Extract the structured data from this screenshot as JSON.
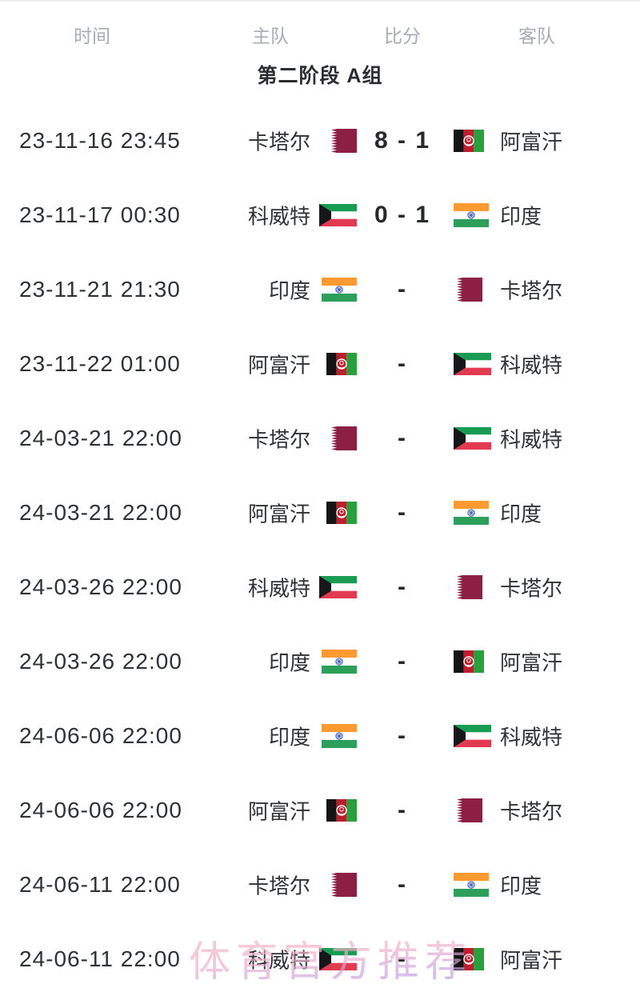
{
  "header": {
    "columns": [
      "时间",
      "主队",
      "比分",
      "客队"
    ]
  },
  "section_title": "第二阶段 A组",
  "watermark": "体育官方推荐",
  "colors": {
    "header_text": "#a7acb3",
    "title_text": "#2b2d31",
    "body_text": "#2f3235",
    "score_text": "#27292c",
    "watermark_pink": "#f2b0c8",
    "watermark_purple": "#aa94ee",
    "background": "#ffffff"
  },
  "flags": {
    "qatar": {
      "label": "卡塔尔",
      "colors": {
        "maroon": "#8d1f44",
        "white": "#ffffff"
      }
    },
    "kuwait": {
      "label": "科威特",
      "colors": {
        "green": "#199b53",
        "white": "#ffffff",
        "red": "#e23a50",
        "black": "#17171a"
      }
    },
    "india": {
      "label": "印度",
      "colors": {
        "saffron": "#ff9a33",
        "white": "#ffffff",
        "green": "#2e9e5b",
        "navy": "#3354b4"
      }
    },
    "afghanistan": {
      "label": "阿富汗",
      "colors": {
        "black": "#141414",
        "red": "#bf1e2d",
        "green": "#28a03c",
        "white": "#ffffff"
      }
    }
  },
  "matches": [
    {
      "time": "23-11-16 23:45",
      "home": "卡塔尔",
      "home_flag": "qatar",
      "score": "8 - 1",
      "away": "阿富汗",
      "away_flag": "afghanistan"
    },
    {
      "time": "23-11-17 00:30",
      "home": "科威特",
      "home_flag": "kuwait",
      "score": "0 - 1",
      "away": "印度",
      "away_flag": "india"
    },
    {
      "time": "23-11-21 21:30",
      "home": "印度",
      "home_flag": "india",
      "score": "-",
      "away": "卡塔尔",
      "away_flag": "qatar"
    },
    {
      "time": "23-11-22 01:00",
      "home": "阿富汗",
      "home_flag": "afghanistan",
      "score": "-",
      "away": "科威特",
      "away_flag": "kuwait"
    },
    {
      "time": "24-03-21 22:00",
      "home": "卡塔尔",
      "home_flag": "qatar",
      "score": "-",
      "away": "科威特",
      "away_flag": "kuwait"
    },
    {
      "time": "24-03-21 22:00",
      "home": "阿富汗",
      "home_flag": "afghanistan",
      "score": "-",
      "away": "印度",
      "away_flag": "india"
    },
    {
      "time": "24-03-26 22:00",
      "home": "科威特",
      "home_flag": "kuwait",
      "score": "-",
      "away": "卡塔尔",
      "away_flag": "qatar"
    },
    {
      "time": "24-03-26 22:00",
      "home": "印度",
      "home_flag": "india",
      "score": "-",
      "away": "阿富汗",
      "away_flag": "afghanistan"
    },
    {
      "time": "24-06-06 22:00",
      "home": "印度",
      "home_flag": "india",
      "score": "-",
      "away": "科威特",
      "away_flag": "kuwait"
    },
    {
      "time": "24-06-06 22:00",
      "home": "阿富汗",
      "home_flag": "afghanistan",
      "score": "-",
      "away": "卡塔尔",
      "away_flag": "qatar"
    },
    {
      "time": "24-06-11 22:00",
      "home": "卡塔尔",
      "home_flag": "qatar",
      "score": "-",
      "away": "印度",
      "away_flag": "india"
    },
    {
      "time": "24-06-11 22:00",
      "home": "科威特",
      "home_flag": "kuwait",
      "score": "-",
      "away": "阿富汗",
      "away_flag": "afghanistan"
    }
  ]
}
